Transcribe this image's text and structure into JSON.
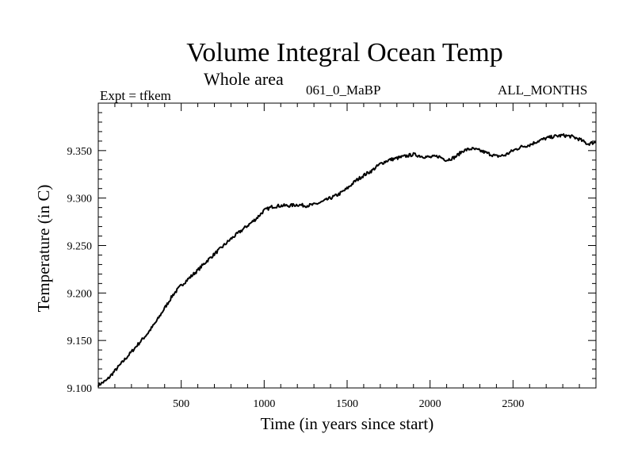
{
  "chart_data": {
    "type": "line",
    "title": "Volume Integral Ocean Temp",
    "subtitle": "Whole area",
    "annotations": {
      "experiment": "Expt = tfkem",
      "period": "061_0_MaBP",
      "months": "ALL_MONTHS"
    },
    "xlabel": "Time (in years since start)",
    "ylabel": "Temperature (in C)",
    "xlim": [
      0,
      3000
    ],
    "ylim": [
      9.1,
      9.4
    ],
    "xticks": [
      500,
      1000,
      1500,
      2000,
      2500
    ],
    "xtick_labels": [
      "500",
      "1000",
      "1500",
      "2000",
      "2500"
    ],
    "yticks": [
      9.1,
      9.15,
      9.2,
      9.25,
      9.3,
      9.35
    ],
    "ytick_labels": [
      "9.100",
      "9.150",
      "9.200",
      "9.250",
      "9.300",
      "9.350"
    ],
    "grid": false,
    "line_color": "#000000",
    "series": [
      {
        "x": [
          0,
          50,
          100,
          150,
          200,
          250,
          300,
          350,
          400,
          450,
          500,
          550,
          600,
          650,
          700,
          750,
          800,
          850,
          900,
          950,
          1000,
          1050,
          1100,
          1150,
          1200,
          1250,
          1300,
          1350,
          1400,
          1450,
          1500,
          1550,
          1600,
          1650,
          1700,
          1750,
          1800,
          1850,
          1900,
          1950,
          2000,
          2050,
          2100,
          2150,
          2200,
          2250,
          2300,
          2350,
          2400,
          2450,
          2500,
          2550,
          2600,
          2650,
          2700,
          2750,
          2800,
          2850,
          2900,
          2950,
          3000
        ],
        "y": [
          9.103,
          9.108,
          9.118,
          9.128,
          9.138,
          9.148,
          9.158,
          9.17,
          9.184,
          9.198,
          9.208,
          9.216,
          9.224,
          9.233,
          9.241,
          9.249,
          9.257,
          9.264,
          9.271,
          9.278,
          9.287,
          9.291,
          9.292,
          9.292,
          9.293,
          9.292,
          9.293,
          9.296,
          9.3,
          9.304,
          9.31,
          9.318,
          9.324,
          9.329,
          9.336,
          9.34,
          9.342,
          9.344,
          9.346,
          9.344,
          9.343,
          9.344,
          9.34,
          9.343,
          9.35,
          9.352,
          9.35,
          9.347,
          9.344,
          9.345,
          9.35,
          9.354,
          9.356,
          9.36,
          9.363,
          9.365,
          9.366,
          9.365,
          9.362,
          9.357,
          9.359
        ]
      }
    ]
  }
}
